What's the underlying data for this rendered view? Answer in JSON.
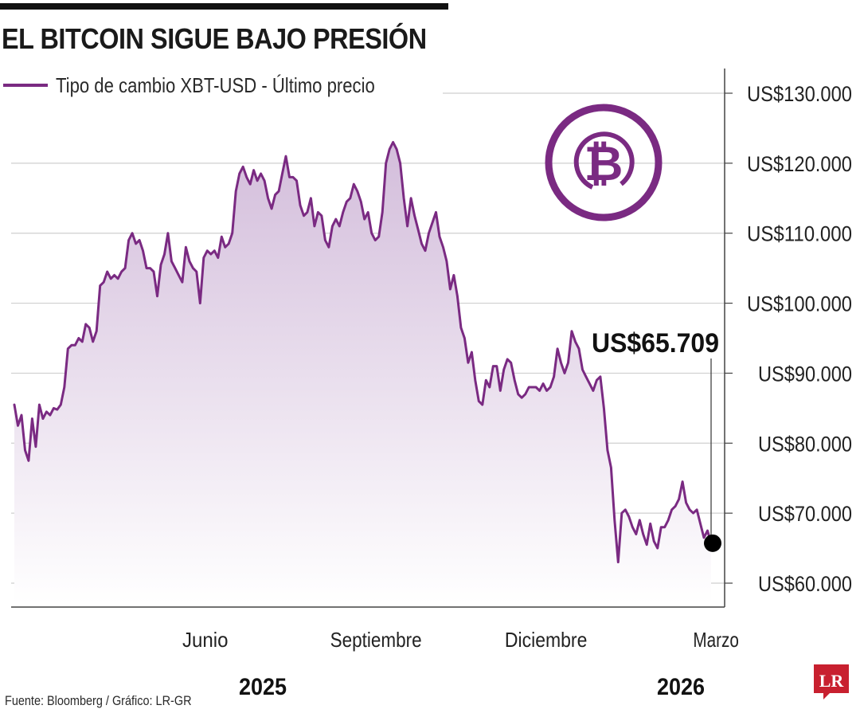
{
  "header": {
    "title": "EL BITCOIN SIGUE BAJO PRESIÓN"
  },
  "legend": {
    "label": "Tipo de cambio XBT-USD - Último precio"
  },
  "footer": {
    "source": "Fuente: Bloomberg / Gráfico: LR-GR",
    "logo_text": "LR"
  },
  "colors": {
    "line": "#7a2a82",
    "fill_top": "#d6c2dd",
    "grid": "#cfcfcf",
    "logo": "#c8202f"
  },
  "chart_data": {
    "type": "area",
    "title": "EL BITCOIN SIGUE BAJO PRESIÓN",
    "series_name": "Tipo de cambio XBT-USD - Último precio",
    "ylim": [
      57000,
      132000
    ],
    "y_ticks": [
      60000,
      70000,
      80000,
      90000,
      100000,
      110000,
      120000,
      130000
    ],
    "y_tick_labels": [
      "US$60.000",
      "US$70.000",
      "US$80.000",
      "US$90.000",
      "US$100.000",
      "US$110.000",
      "US$120.000",
      "US$130.000"
    ],
    "month_labels": [
      {
        "label": "Junio",
        "t": 0.274
      },
      {
        "label": "Septiembre",
        "t": 0.519
      },
      {
        "label": "Diciembre",
        "t": 0.763
      },
      {
        "label": "Marzo",
        "t": 1.007
      }
    ],
    "year_labels": [
      {
        "label": "2025",
        "t": 0.4
      },
      {
        "label": "2026",
        "t": 1.0
      }
    ],
    "last_value_label": "US$65.709",
    "last_value": 65709,
    "values": [
      85500,
      82500,
      84000,
      79000,
      77500,
      83500,
      79500,
      85500,
      83500,
      84500,
      84000,
      85000,
      84800,
      85500,
      88000,
      93500,
      94000,
      94000,
      95000,
      94500,
      97000,
      96500,
      94500,
      96000,
      102500,
      103000,
      104500,
      103500,
      104000,
      103500,
      104500,
      105000,
      109000,
      110000,
      108500,
      109000,
      107500,
      105000,
      105000,
      104500,
      101000,
      105500,
      107000,
      110000,
      106000,
      105000,
      104000,
      103000,
      108000,
      106000,
      105000,
      104500,
      100000,
      106500,
      107500,
      107000,
      107500,
      106500,
      109500,
      108000,
      108500,
      110000,
      116000,
      118500,
      119500,
      118000,
      117000,
      119000,
      117500,
      118500,
      117500,
      115000,
      113500,
      115500,
      116000,
      118500,
      121000,
      118000,
      118000,
      117500,
      114000,
      112500,
      113000,
      115000,
      111000,
      113000,
      112500,
      109000,
      108000,
      111000,
      112000,
      111000,
      113000,
      114500,
      115000,
      117000,
      116000,
      114500,
      112000,
      113000,
      110000,
      109000,
      109500,
      113000,
      120000,
      122000,
      123000,
      122000,
      120000,
      115000,
      111000,
      115000,
      112500,
      110500,
      108500,
      107500,
      110000,
      111500,
      113000,
      109500,
      108000,
      106000,
      102000,
      104000,
      101000,
      96500,
      95000,
      91500,
      93000,
      89000,
      86000,
      85500,
      89000,
      88000,
      91000,
      91000,
      87500,
      90500,
      92000,
      91500,
      89000,
      87000,
      86500,
      87000,
      88000,
      88000,
      88000,
      87500,
      88500,
      87500,
      88000,
      89500,
      93500,
      91500,
      90000,
      91500,
      96000,
      94500,
      93500,
      90500,
      89500,
      88500,
      87500,
      89000,
      89500,
      85000,
      79000,
      76500,
      69000,
      63000,
      70000,
      70500,
      69500,
      68000,
      67000,
      69000,
      67000,
      65500,
      68500,
      66000,
      65000,
      68000,
      68000,
      69000,
      70500,
      71000,
      72000,
      74500,
      71500,
      70500,
      70000,
      70500,
      68500,
      66500,
      67500,
      65709
    ]
  }
}
